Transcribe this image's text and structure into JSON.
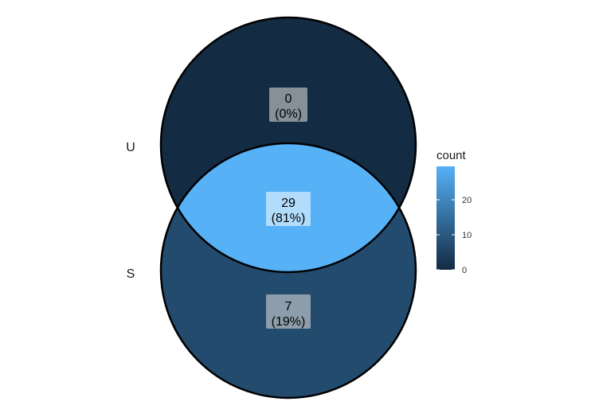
{
  "chart_data": {
    "type": "venn",
    "sets": [
      {
        "name": "U"
      },
      {
        "name": "S"
      }
    ],
    "regions": [
      {
        "sets": [
          "U"
        ],
        "count": "0",
        "percent": "(0%)",
        "value": 0
      },
      {
        "sets": [
          "U",
          "S"
        ],
        "count": "29",
        "percent": "(81%)",
        "value": 29
      },
      {
        "sets": [
          "S"
        ],
        "count": "7",
        "percent": "(19%)",
        "value": 7
      }
    ],
    "legend": {
      "title": "count",
      "ticks": [
        "0",
        "10",
        "20"
      ],
      "placement": "right",
      "range": [
        0,
        29
      ],
      "colors": {
        "low": "#132b43",
        "high": "#56b1f7"
      }
    }
  }
}
